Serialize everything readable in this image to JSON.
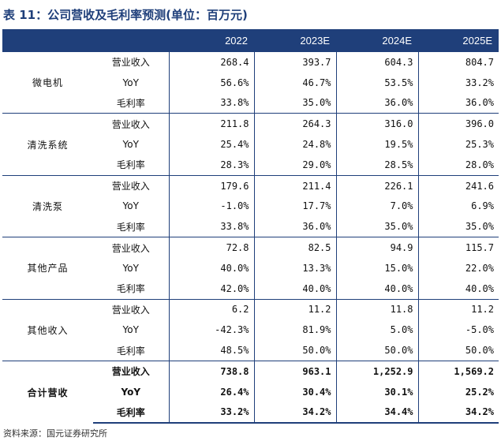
{
  "title": "表 11：公司营收及毛利率预测(单位：百万元)",
  "columns": [
    "",
    "",
    "2022",
    "2023E",
    "2024E",
    "2025E"
  ],
  "groups": [
    {
      "name": "微电机",
      "rows": [
        {
          "metric": "营业收入",
          "values": [
            "268.4",
            "393.7",
            "604.3",
            "804.7"
          ]
        },
        {
          "metric": "YoY",
          "values": [
            "56.6%",
            "46.7%",
            "53.5%",
            "33.2%"
          ]
        },
        {
          "metric": "毛利率",
          "values": [
            "33.8%",
            "35.0%",
            "36.0%",
            "36.0%"
          ]
        }
      ]
    },
    {
      "name": "清洗系统",
      "rows": [
        {
          "metric": "营业收入",
          "values": [
            "211.8",
            "264.3",
            "316.0",
            "396.0"
          ]
        },
        {
          "metric": "YoY",
          "values": [
            "25.4%",
            "24.8%",
            "19.5%",
            "25.3%"
          ]
        },
        {
          "metric": "毛利率",
          "values": [
            "28.3%",
            "29.0%",
            "28.5%",
            "28.0%"
          ]
        }
      ]
    },
    {
      "name": "清洗泵",
      "rows": [
        {
          "metric": "营业收入",
          "values": [
            "179.6",
            "211.4",
            "226.1",
            "241.6"
          ]
        },
        {
          "metric": "YoY",
          "values": [
            "-1.0%",
            "17.7%",
            "7.0%",
            "6.9%"
          ]
        },
        {
          "metric": "毛利率",
          "values": [
            "33.8%",
            "36.0%",
            "35.0%",
            "35.0%"
          ]
        }
      ]
    },
    {
      "name": "其他产品",
      "rows": [
        {
          "metric": "营业收入",
          "values": [
            "72.8",
            "82.5",
            "94.9",
            "115.7"
          ]
        },
        {
          "metric": "YoY",
          "values": [
            "40.0%",
            "13.3%",
            "15.0%",
            "22.0%"
          ]
        },
        {
          "metric": "毛利率",
          "values": [
            "42.0%",
            "40.0%",
            "40.0%",
            "40.0%"
          ]
        }
      ]
    },
    {
      "name": "其他收入",
      "rows": [
        {
          "metric": "营业收入",
          "values": [
            "6.2",
            "11.2",
            "11.8",
            "11.2"
          ]
        },
        {
          "metric": "YoY",
          "values": [
            "-42.3%",
            "81.9%",
            "5.0%",
            "-5.0%"
          ]
        },
        {
          "metric": "毛利率",
          "values": [
            "48.5%",
            "50.0%",
            "50.0%",
            "50.0%"
          ]
        }
      ]
    },
    {
      "name": "合计营收",
      "rows": [
        {
          "metric": "营业收入",
          "values": [
            "738.8",
            "963.1",
            "1,252.9",
            "1,569.2"
          ]
        },
        {
          "metric": "YoY",
          "values": [
            "26.4%",
            "30.4%",
            "30.1%",
            "25.2%"
          ]
        },
        {
          "metric": "毛利率",
          "values": [
            "33.2%",
            "34.2%",
            "34.4%",
            "34.2%"
          ]
        }
      ]
    }
  ],
  "source": "资料来源：国元证券研究所",
  "colors": {
    "header_bg": "#1f3f7a",
    "title": "#1f3f7a",
    "rule": "#1f3f7a"
  }
}
